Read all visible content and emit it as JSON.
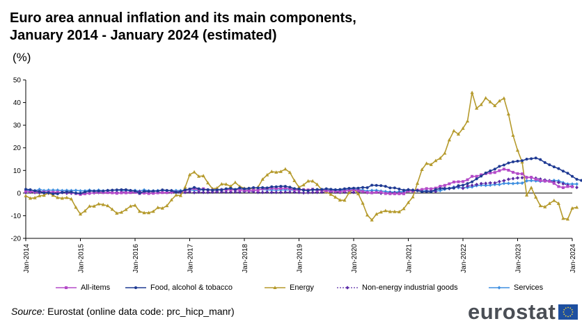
{
  "title_line1": "Euro area annual inflation and its main components,",
  "title_line2": "January 2014 - January 2024 (estimated)",
  "unit_label": "(%)",
  "source_label": "Source:",
  "source_text": " Eurostat (online data code: prc_hicp_manr)",
  "logo_text": "eurostat",
  "chart_data": {
    "type": "line",
    "title": "Euro area annual inflation and its main components, January 2014 - January 2024 (estimated)",
    "ylabel": "(%)",
    "ylim": [
      -20,
      50
    ],
    "yticks": [
      -20,
      -10,
      0,
      10,
      20,
      30,
      40,
      50
    ],
    "x_start": "Jan-2014",
    "x_end": "Jan-2024",
    "frequency": "monthly",
    "xticks": [
      "Jan-2014",
      "Jan-2015",
      "Jan-2016",
      "Jan-2017",
      "Jan-2018",
      "Jan-2019",
      "Jan-2020",
      "Jan-2021",
      "Jan-2022",
      "Jan-2023",
      "Jan-2024"
    ],
    "series": [
      {
        "name": "All-items",
        "color": "#b44ac8",
        "marker": "square",
        "values": [
          0.8,
          0.7,
          0.5,
          0.7,
          0.5,
          0.5,
          0.4,
          0.4,
          0.3,
          0.4,
          0.3,
          -0.2,
          -0.6,
          -0.3,
          -0.1,
          0.2,
          0.3,
          0.2,
          0.2,
          0.1,
          -0.1,
          0.1,
          0.1,
          0.2,
          0.3,
          -0.2,
          0.0,
          -0.2,
          -0.1,
          0.1,
          0.2,
          0.2,
          0.4,
          0.5,
          0.6,
          1.1,
          1.7,
          2.0,
          1.5,
          1.9,
          1.4,
          1.3,
          1.3,
          1.5,
          1.5,
          1.4,
          1.5,
          1.3,
          1.3,
          1.1,
          1.4,
          1.2,
          1.9,
          2.0,
          2.2,
          2.0,
          2.1,
          2.2,
          1.9,
          1.5,
          1.4,
          1.5,
          1.4,
          1.7,
          1.2,
          1.3,
          1.0,
          1.0,
          0.8,
          0.7,
          1.0,
          1.3,
          1.4,
          1.2,
          0.7,
          0.3,
          0.1,
          0.3,
          0.4,
          -0.2,
          -0.3,
          -0.3,
          -0.3,
          -0.3,
          0.9,
          0.9,
          1.3,
          1.6,
          2.0,
          1.9,
          2.2,
          3.0,
          3.4,
          4.1,
          4.9,
          5.0,
          5.1,
          5.9,
          7.4,
          7.4,
          8.1,
          8.6,
          8.9,
          9.1,
          9.9,
          10.6,
          10.1,
          9.2,
          8.6,
          8.5,
          6.9,
          7.0,
          6.1,
          5.5,
          5.3,
          5.2,
          4.3,
          2.9,
          2.4,
          2.9,
          2.8
        ]
      },
      {
        "name": "Food, alcohol & tobacco",
        "color": "#1f3a93",
        "marker": "circle",
        "values": [
          1.7,
          1.5,
          1.0,
          0.7,
          0.1,
          0.2,
          -0.3,
          -0.3,
          0.3,
          0.5,
          0.5,
          0.0,
          -0.1,
          0.5,
          0.9,
          0.9,
          0.9,
          0.9,
          1.2,
          1.3,
          1.4,
          1.5,
          1.5,
          1.2,
          0.9,
          -0.1,
          0.8,
          0.8,
          0.9,
          0.9,
          1.4,
          1.2,
          1.1,
          0.4,
          0.7,
          1.4,
          1.8,
          2.5,
          1.9,
          1.5,
          1.5,
          1.3,
          1.4,
          1.4,
          1.9,
          2.1,
          1.6,
          2.3,
          1.9,
          2.1,
          2.4,
          2.3,
          2.4,
          2.3,
          2.8,
          2.8,
          3.0,
          3.0,
          2.6,
          2.0,
          1.8,
          1.3,
          1.1,
          1.5,
          1.6,
          1.6,
          1.9,
          1.7,
          1.5,
          1.6,
          1.9,
          2.1,
          2.2,
          2.2,
          2.5,
          2.4,
          3.5,
          3.4,
          3.3,
          3.0,
          2.3,
          2.3,
          1.8,
          1.3,
          1.5,
          1.3,
          1.1,
          0.6,
          0.7,
          0.6,
          1.6,
          2.0,
          2.0,
          2.1,
          2.2,
          3.3,
          3.5,
          4.2,
          5.0,
          6.3,
          7.5,
          8.9,
          9.8,
          10.6,
          11.8,
          12.4,
          13.3,
          13.8,
          14.1,
          14.3,
          15.0,
          15.2,
          15.5,
          14.8,
          13.5,
          12.5,
          11.6,
          10.8,
          9.7,
          8.8,
          7.4,
          6.1,
          5.6
        ]
      },
      {
        "name": "Energy",
        "color": "#b59a2c",
        "marker": "triangle",
        "values": [
          -1.2,
          -2.3,
          -2.1,
          -1.2,
          -1.0,
          0.1,
          -1.0,
          -2.0,
          -2.3,
          -2.0,
          -2.6,
          -6.3,
          -9.3,
          -7.9,
          -5.8,
          -5.8,
          -4.8,
          -5.1,
          -5.6,
          -7.2,
          -8.9,
          -8.5,
          -7.3,
          -5.8,
          -5.4,
          -8.1,
          -8.7,
          -8.7,
          -8.1,
          -6.4,
          -6.7,
          -5.6,
          -3.0,
          -0.9,
          -1.1,
          2.6,
          8.1,
          9.3,
          7.4,
          7.6,
          4.5,
          1.9,
          2.2,
          4.0,
          3.9,
          3.0,
          4.7,
          2.9,
          2.1,
          2.1,
          2.0,
          2.6,
          6.1,
          8.0,
          9.5,
          9.2,
          9.5,
          10.6,
          9.1,
          5.5,
          2.6,
          3.6,
          5.3,
          5.3,
          3.8,
          1.5,
          0.5,
          -0.6,
          -1.8,
          -3.1,
          -3.2,
          0.2,
          1.9,
          -0.3,
          -4.5,
          -9.7,
          -11.9,
          -9.3,
          -8.4,
          -7.8,
          -8.2,
          -8.2,
          -8.3,
          -6.9,
          -4.2,
          -1.7,
          4.3,
          10.4,
          13.1,
          12.6,
          14.3,
          15.4,
          17.6,
          23.5,
          27.5,
          26.0,
          28.6,
          31.8,
          44.4,
          37.5,
          39.1,
          42.0,
          40.3,
          38.6,
          40.7,
          41.9,
          34.9,
          25.5,
          18.9,
          13.7,
          -0.9,
          2.4,
          -1.8,
          -5.6,
          -6.1,
          -4.6,
          -3.3,
          -4.6,
          -11.2,
          -11.5,
          -6.7,
          -6.3
        ]
      },
      {
        "name": "Non-energy industrial goods",
        "color": "#5a2aa6",
        "marker": "diamond",
        "dashed": true,
        "values": [
          0.2,
          0.4,
          0.2,
          0.1,
          0.0,
          -0.1,
          0.0,
          0.3,
          0.2,
          -0.1,
          -0.1,
          -0.1,
          -0.1,
          0.0,
          -0.1,
          0.1,
          0.2,
          0.3,
          0.5,
          0.4,
          0.3,
          0.5,
          0.5,
          0.6,
          0.7,
          0.7,
          0.5,
          0.5,
          0.5,
          0.4,
          0.4,
          0.3,
          0.3,
          0.3,
          0.3,
          0.3,
          0.5,
          0.2,
          0.4,
          0.3,
          0.3,
          0.4,
          0.5,
          0.5,
          0.4,
          0.4,
          0.5,
          0.4,
          0.7,
          0.6,
          0.6,
          0.3,
          0.3,
          0.4,
          0.3,
          0.3,
          0.3,
          0.4,
          0.4,
          0.4,
          0.3,
          0.1,
          0.2,
          0.3,
          0.3,
          0.4,
          0.4,
          0.5,
          0.4,
          0.3,
          0.4,
          0.5,
          0.3,
          0.5,
          0.5,
          0.2,
          0.3,
          0.4,
          -0.1,
          -0.1,
          0.1,
          0.1,
          0.1,
          0.1,
          1.5,
          1.3,
          1.1,
          0.7,
          0.7,
          1.2,
          0.7,
          2.6,
          2.1,
          2.0,
          2.4,
          2.9,
          2.1,
          3.1,
          3.4,
          3.8,
          4.2,
          4.3,
          4.5,
          4.5,
          5.1,
          5.5,
          6.1,
          6.4,
          6.7,
          6.8,
          6.9,
          6.8,
          6.6,
          6.2,
          5.8,
          5.5,
          5.0,
          4.7,
          4.1,
          3.5,
          2.9,
          2.5
        ]
      },
      {
        "name": "Services",
        "color": "#3f8fe0",
        "marker": "diamond",
        "values": [
          1.1,
          1.3,
          1.1,
          1.6,
          1.1,
          1.3,
          1.3,
          1.3,
          1.1,
          1.2,
          1.1,
          1.2,
          1.0,
          1.0,
          1.3,
          1.0,
          1.3,
          1.0,
          1.2,
          1.2,
          1.3,
          1.2,
          1.2,
          1.1,
          1.2,
          0.9,
          1.4,
          1.0,
          1.0,
          1.1,
          1.2,
          1.1,
          1.1,
          1.1,
          1.1,
          1.2,
          1.3,
          1.3,
          1.0,
          1.8,
          1.3,
          1.6,
          1.6,
          1.6,
          1.6,
          1.4,
          1.5,
          1.6,
          1.4,
          1.6,
          1.0,
          1.6,
          1.6,
          1.4,
          1.4,
          1.3,
          1.4,
          1.4,
          1.4,
          1.3,
          1.3,
          1.5,
          1.3,
          1.6,
          1.0,
          1.6,
          1.2,
          1.3,
          1.4,
          1.2,
          1.5,
          1.9,
          1.6,
          1.6,
          1.3,
          0.9,
          1.2,
          1.2,
          0.9,
          0.7,
          0.5,
          0.4,
          0.6,
          0.7,
          1.4,
          1.3,
          1.3,
          0.9,
          1.1,
          0.7,
          0.9,
          1.1,
          1.7,
          2.1,
          2.7,
          2.4,
          2.3,
          2.5,
          2.7,
          3.3,
          3.5,
          3.4,
          3.5,
          3.8,
          3.8,
          4.3,
          4.3,
          4.2,
          4.4,
          4.4,
          5.4,
          5.5,
          5.4,
          5.2,
          5.3,
          5.5,
          5.6,
          5.4,
          4.6,
          4.0,
          4.0,
          4.0
        ]
      }
    ]
  }
}
